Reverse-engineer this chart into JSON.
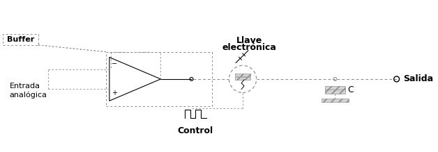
{
  "bg_color": "#ffffff",
  "line_color": "#000000",
  "dashed_color": "#888888",
  "labels": {
    "buffer": "Buffer",
    "entrada": "Entrada\nanalógica",
    "llave1": "Llave",
    "llave2": "electrónica",
    "control": "Control",
    "salida": "Salida",
    "C": "C"
  },
  "figsize": [
    6.28,
    2.19
  ],
  "dpi": 100
}
